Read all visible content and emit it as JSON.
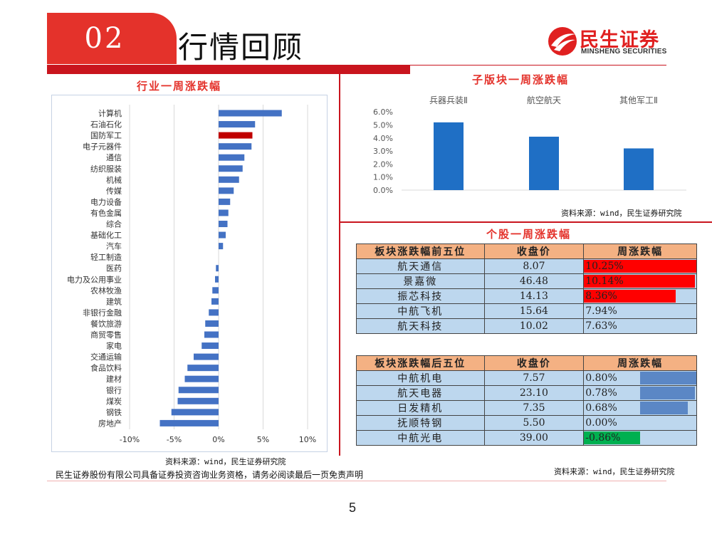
{
  "header": {
    "section_number": "02",
    "title": "行情回顾",
    "logo_cn": "民生证券",
    "logo_en": "MINSHENG SECURITIES"
  },
  "colors": {
    "brand_red": "#e4322b",
    "bar_blue": "#4472c4",
    "highlight_red": "#c00000",
    "column_blue": "#1f6fc5",
    "pos_fill": "#ff0000",
    "neg_fill": "#00b050",
    "low_fill": "#5b87c5",
    "header_orange": "#f4b183",
    "cell_blue": "#bdd7ee"
  },
  "industry_chart": {
    "title": "行业一周涨跌幅",
    "source": "资料来源：wind，民生证券研究院",
    "chart_data": {
      "type": "bar",
      "orientation": "horizontal",
      "categories": [
        "计算机",
        "石油石化",
        "国防军工",
        "电子元器件",
        "通信",
        "纺织服装",
        "机械",
        "传媒",
        "电力设备",
        "有色金属",
        "综合",
        "基础化工",
        "汽车",
        "轻工制造",
        "医药",
        "电力及公用事业",
        "农林牧渔",
        "建筑",
        "非银行金融",
        "餐饮旅游",
        "商贸零售",
        "家电",
        "交通运输",
        "食品饮料",
        "建材",
        "银行",
        "煤炭",
        "钢铁",
        "房地产"
      ],
      "values": [
        7.1,
        4.1,
        3.8,
        3.7,
        2.9,
        2.7,
        2.3,
        1.7,
        1.3,
        1.1,
        1.0,
        0.8,
        0.5,
        0.0,
        -0.3,
        -0.4,
        -0.7,
        -0.8,
        -1.1,
        -1.5,
        -1.6,
        -1.9,
        -2.8,
        -3.5,
        -3.8,
        -4.5,
        -4.6,
        -5.3,
        -6.6
      ],
      "highlight": "国防军工",
      "xlim": [
        -10,
        10
      ],
      "xticks": [
        "-10%",
        "-5%",
        "0%",
        "5%",
        "10%"
      ],
      "xtick_values": [
        -10,
        -5,
        0,
        5,
        10
      ]
    }
  },
  "sub_chart": {
    "title": "子版块一周涨跌幅",
    "source": "资料来源：wind，民生证券研究院",
    "chart_data": {
      "type": "bar",
      "categories": [
        "兵器兵装Ⅱ",
        "航空航天",
        "其他军工Ⅱ"
      ],
      "values": [
        5.2,
        4.1,
        3.2
      ],
      "ylim": [
        0,
        6
      ],
      "yticks": [
        "0.0%",
        "1.0%",
        "2.0%",
        "3.0%",
        "4.0%",
        "5.0%",
        "6.0%"
      ],
      "ytick_values": [
        0,
        1,
        2,
        3,
        4,
        5,
        6
      ]
    }
  },
  "stocks": {
    "title": "个股一周涨跌幅",
    "source": "资料来源：wind，民生证券研究院",
    "top": {
      "headers": [
        "板块涨跌幅前五位",
        "收盘价",
        "周涨跌幅"
      ],
      "rows": [
        {
          "name": "航天通信",
          "price": "8.07",
          "change": "10.25%",
          "value": 10.25
        },
        {
          "name": "景嘉微",
          "price": "46.48",
          "change": "10.14%",
          "value": 10.14
        },
        {
          "name": "振芯科技",
          "price": "14.13",
          "change": "8.36%",
          "value": 8.36
        },
        {
          "name": "中航飞机",
          "price": "15.64",
          "change": "7.94%",
          "value": 7.94
        },
        {
          "name": "航天科技",
          "price": "10.02",
          "change": "7.63%",
          "value": 7.63
        }
      ]
    },
    "bottom": {
      "headers": [
        "板块涨跌幅后五位",
        "收盘价",
        "周涨跌幅"
      ],
      "rows": [
        {
          "name": "中航机电",
          "price": "7.57",
          "change": "0.80%",
          "value": 0.8
        },
        {
          "name": "航天电器",
          "price": "23.10",
          "change": "0.78%",
          "value": 0.78
        },
        {
          "name": "日发精机",
          "price": "7.35",
          "change": "0.68%",
          "value": 0.68
        },
        {
          "name": "抚顺特钢",
          "price": "5.50",
          "change": "0.00%",
          "value": 0.0
        },
        {
          "name": "中航光电",
          "price": "39.00",
          "change": "-0.86%",
          "value": -0.86
        }
      ]
    }
  },
  "footer": {
    "disclaimer": "民生证券股份有限公司具备证券投资咨询业务资格，请务必阅读最后一页免责声明",
    "page_number": "5"
  }
}
